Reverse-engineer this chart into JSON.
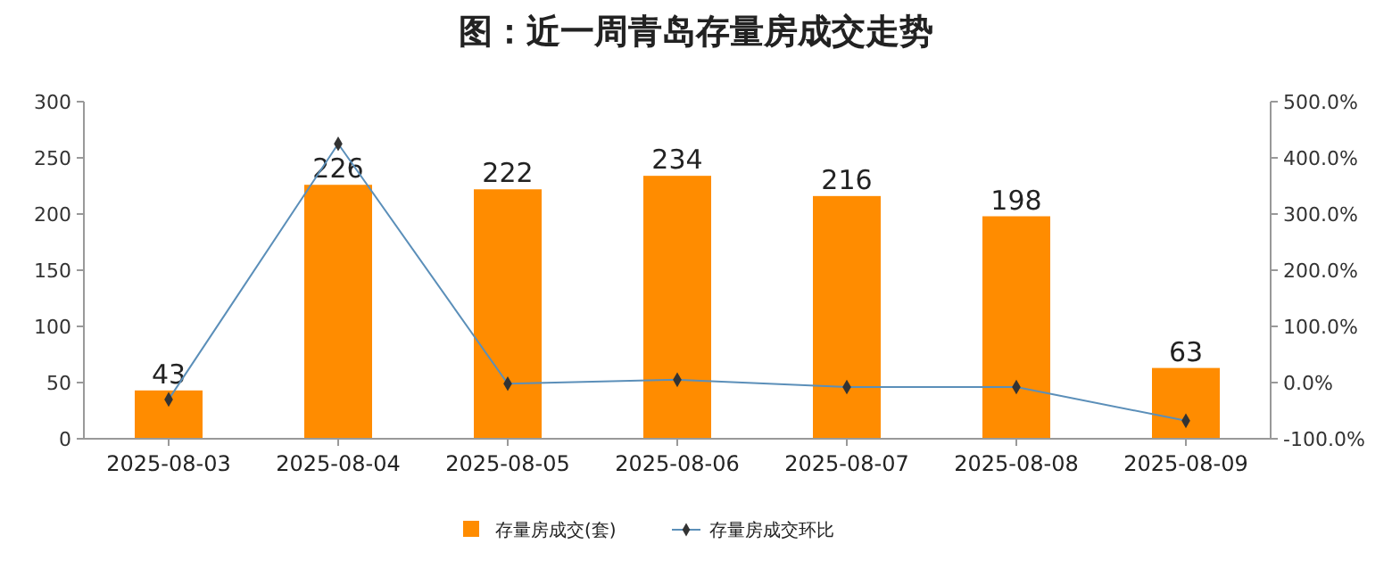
{
  "chart_data": {
    "type": "bar",
    "title": "图：近一周青岛存量房成交走势",
    "categories": [
      "2025-08-03",
      "2025-08-04",
      "2025-08-05",
      "2025-08-06",
      "2025-08-07",
      "2025-08-08",
      "2025-08-09"
    ],
    "series": [
      {
        "name": "存量房成交(套)",
        "color": "#ff8c00",
        "values": [
          43,
          226,
          222,
          234,
          216,
          198,
          63
        ],
        "value_labels": [
          "43",
          "226",
          "222",
          "234",
          "216",
          "198",
          "63"
        ]
      },
      {
        "name": "存量房成交环比",
        "type": "line",
        "axis": "y2",
        "color": "#5b8fb9",
        "marker": "diamond",
        "values": [
          -30,
          425,
          -2,
          5,
          -8,
          -8,
          -68
        ]
      }
    ],
    "ylim": [
      0,
      300
    ],
    "yticks": [
      0,
      50,
      100,
      150,
      200,
      250,
      300
    ],
    "y2lim": [
      -100,
      500
    ],
    "y2ticks": [
      {
        "value": -100,
        "label": "-100.0%"
      },
      {
        "value": 0,
        "label": "0.0%"
      },
      {
        "value": 100,
        "label": "100.0%"
      },
      {
        "value": 200,
        "label": "200.0%"
      },
      {
        "value": 300,
        "label": "300.0%"
      },
      {
        "value": 400,
        "label": "400.0%"
      },
      {
        "value": 500,
        "label": "500.0%"
      }
    ],
    "legend": "bottom",
    "grid": false
  }
}
